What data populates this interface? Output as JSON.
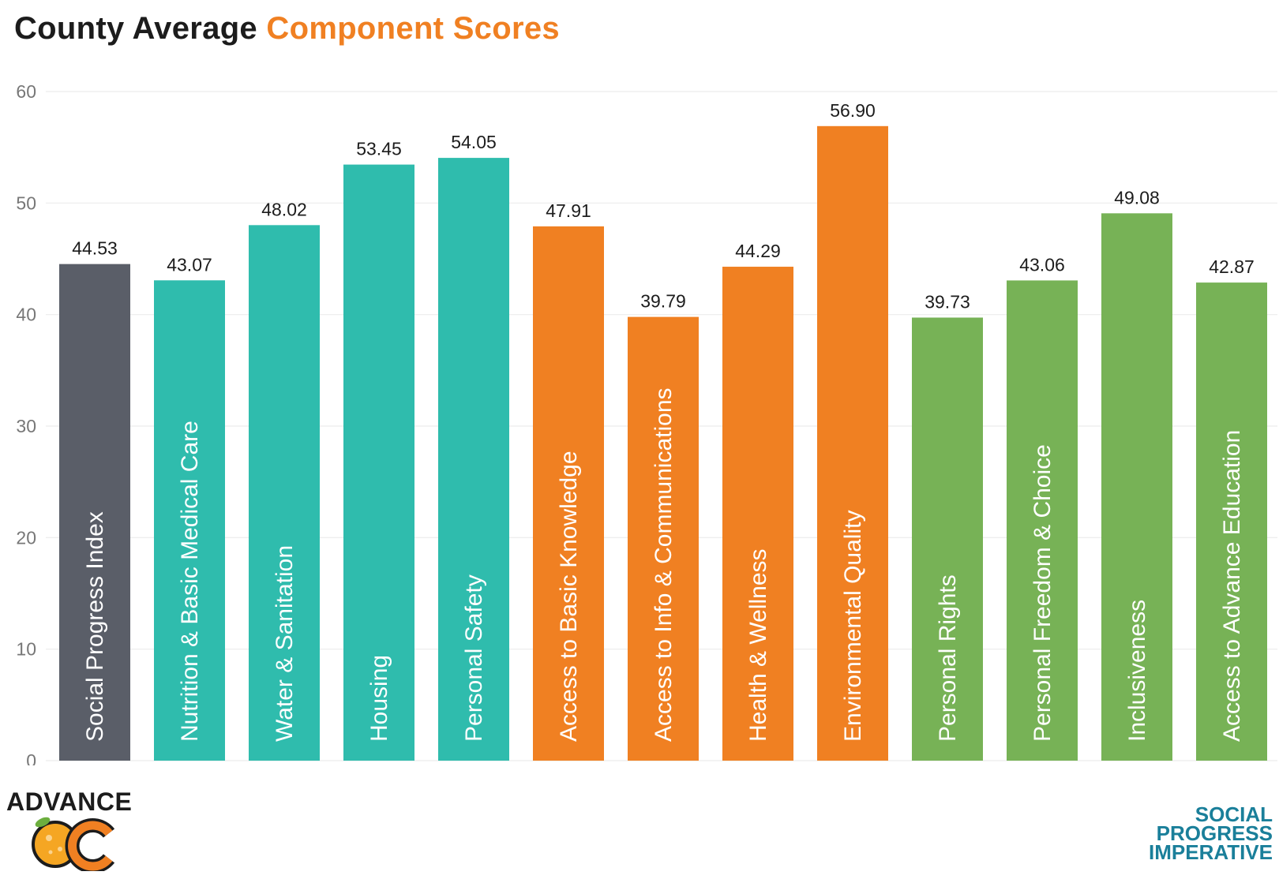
{
  "title": {
    "part1": "County Average",
    "part2": "Component Scores"
  },
  "colors": {
    "index": "#5a5e68",
    "basic_needs": "#2fbcad",
    "foundations": "#f08022",
    "opportunity": "#77b256",
    "title_accent": "#f08022",
    "grid": "#ececec",
    "axis_text": "#777777"
  },
  "logos": {
    "left": "ADVANCE OC",
    "right_lines": [
      "SOCIAL",
      "PROGRESS",
      "IMPERATIVE"
    ]
  },
  "chart_data": {
    "type": "bar",
    "ylim": [
      0,
      60
    ],
    "yticks": [
      0,
      10,
      20,
      30,
      40,
      50,
      60
    ],
    "grid": true,
    "categories": [
      "Social Progress Index",
      "Nutrition & Basic Medical Care",
      "Water & Sanitation",
      "Housing",
      "Personal Safety",
      "Access to Basic Knowledge",
      "Access to Info & Communications",
      "Health & Wellness",
      "Environmental Quality",
      "Personal Rights",
      "Personal Freedom & Choice",
      "Inclusiveness",
      "Access to Advance Education"
    ],
    "values": [
      44.53,
      43.07,
      48.02,
      53.45,
      54.05,
      47.91,
      39.79,
      44.29,
      56.9,
      39.73,
      43.06,
      49.08,
      42.87
    ],
    "value_labels": [
      "44.53",
      "43.07",
      "48.02",
      "53.45",
      "54.05",
      "47.91",
      "39.79",
      "44.29",
      "56.90",
      "39.73",
      "43.06",
      "49.08",
      "42.87"
    ],
    "groups": [
      "index",
      "basic_needs",
      "basic_needs",
      "basic_needs",
      "basic_needs",
      "foundations",
      "foundations",
      "foundations",
      "foundations",
      "opportunity",
      "opportunity",
      "opportunity",
      "opportunity"
    ]
  }
}
